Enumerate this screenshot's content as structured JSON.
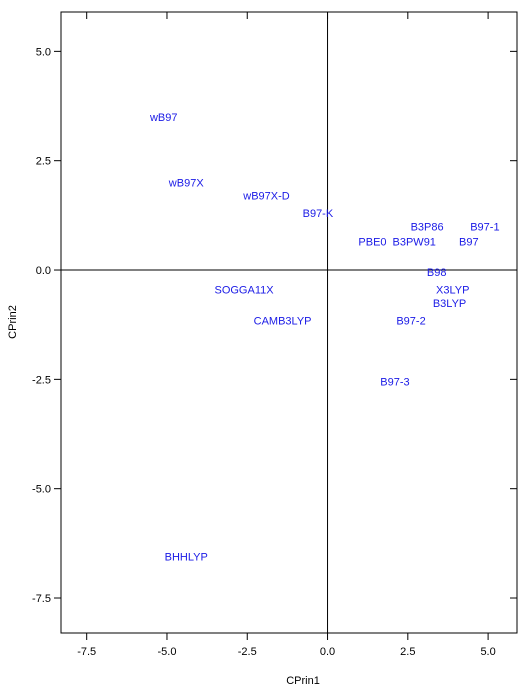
{
  "chart_data": {
    "type": "scatter",
    "xlabel": "CPrin1",
    "ylabel": "CPrin2",
    "xlim": [
      -8.3,
      5.9
    ],
    "ylim": [
      -8.3,
      5.9
    ],
    "xticks": [
      "-7.5",
      "-5.0",
      "-2.5",
      "0.0",
      "2.5",
      "5.0"
    ],
    "xtick_values": [
      -7.5,
      -5.0,
      -2.5,
      0.0,
      2.5,
      5.0
    ],
    "yticks": [
      "5.0",
      "2.5",
      "0.0",
      "-2.5",
      "-5.0",
      "-7.5"
    ],
    "ytick_values": [
      5.0,
      2.5,
      0.0,
      -2.5,
      -5.0,
      -7.5
    ],
    "reference_lines": {
      "x": 0,
      "y": 0
    },
    "label_color": "#1a1ae6",
    "points": [
      {
        "label": "wB97",
        "x": -5.1,
        "y": 3.5
      },
      {
        "label": "wB97X",
        "x": -4.4,
        "y": 2.0
      },
      {
        "label": "wB97X-D",
        "x": -1.9,
        "y": 1.7
      },
      {
        "label": "B97-K",
        "x": -0.3,
        "y": 1.3
      },
      {
        "label": "B3P86",
        "x": 3.1,
        "y": 1.0
      },
      {
        "label": "B97-1",
        "x": 4.9,
        "y": 1.0
      },
      {
        "label": "PBE0",
        "x": 1.4,
        "y": 0.65
      },
      {
        "label": "B3PW91",
        "x": 2.7,
        "y": 0.65
      },
      {
        "label": "B97",
        "x": 4.4,
        "y": 0.65
      },
      {
        "label": "B98",
        "x": 3.4,
        "y": -0.05
      },
      {
        "label": "SOGGA11X",
        "x": -2.6,
        "y": -0.45
      },
      {
        "label": "X3LYP",
        "x": 3.9,
        "y": -0.45
      },
      {
        "label": "B3LYP",
        "x": 3.8,
        "y": -0.75
      },
      {
        "label": "CAMB3LYP",
        "x": -1.4,
        "y": -1.15
      },
      {
        "label": "B97-2",
        "x": 2.6,
        "y": -1.15
      },
      {
        "label": "B97-3",
        "x": 2.1,
        "y": -2.55
      },
      {
        "label": "BHHLYP",
        "x": -4.4,
        "y": -6.55
      }
    ]
  }
}
